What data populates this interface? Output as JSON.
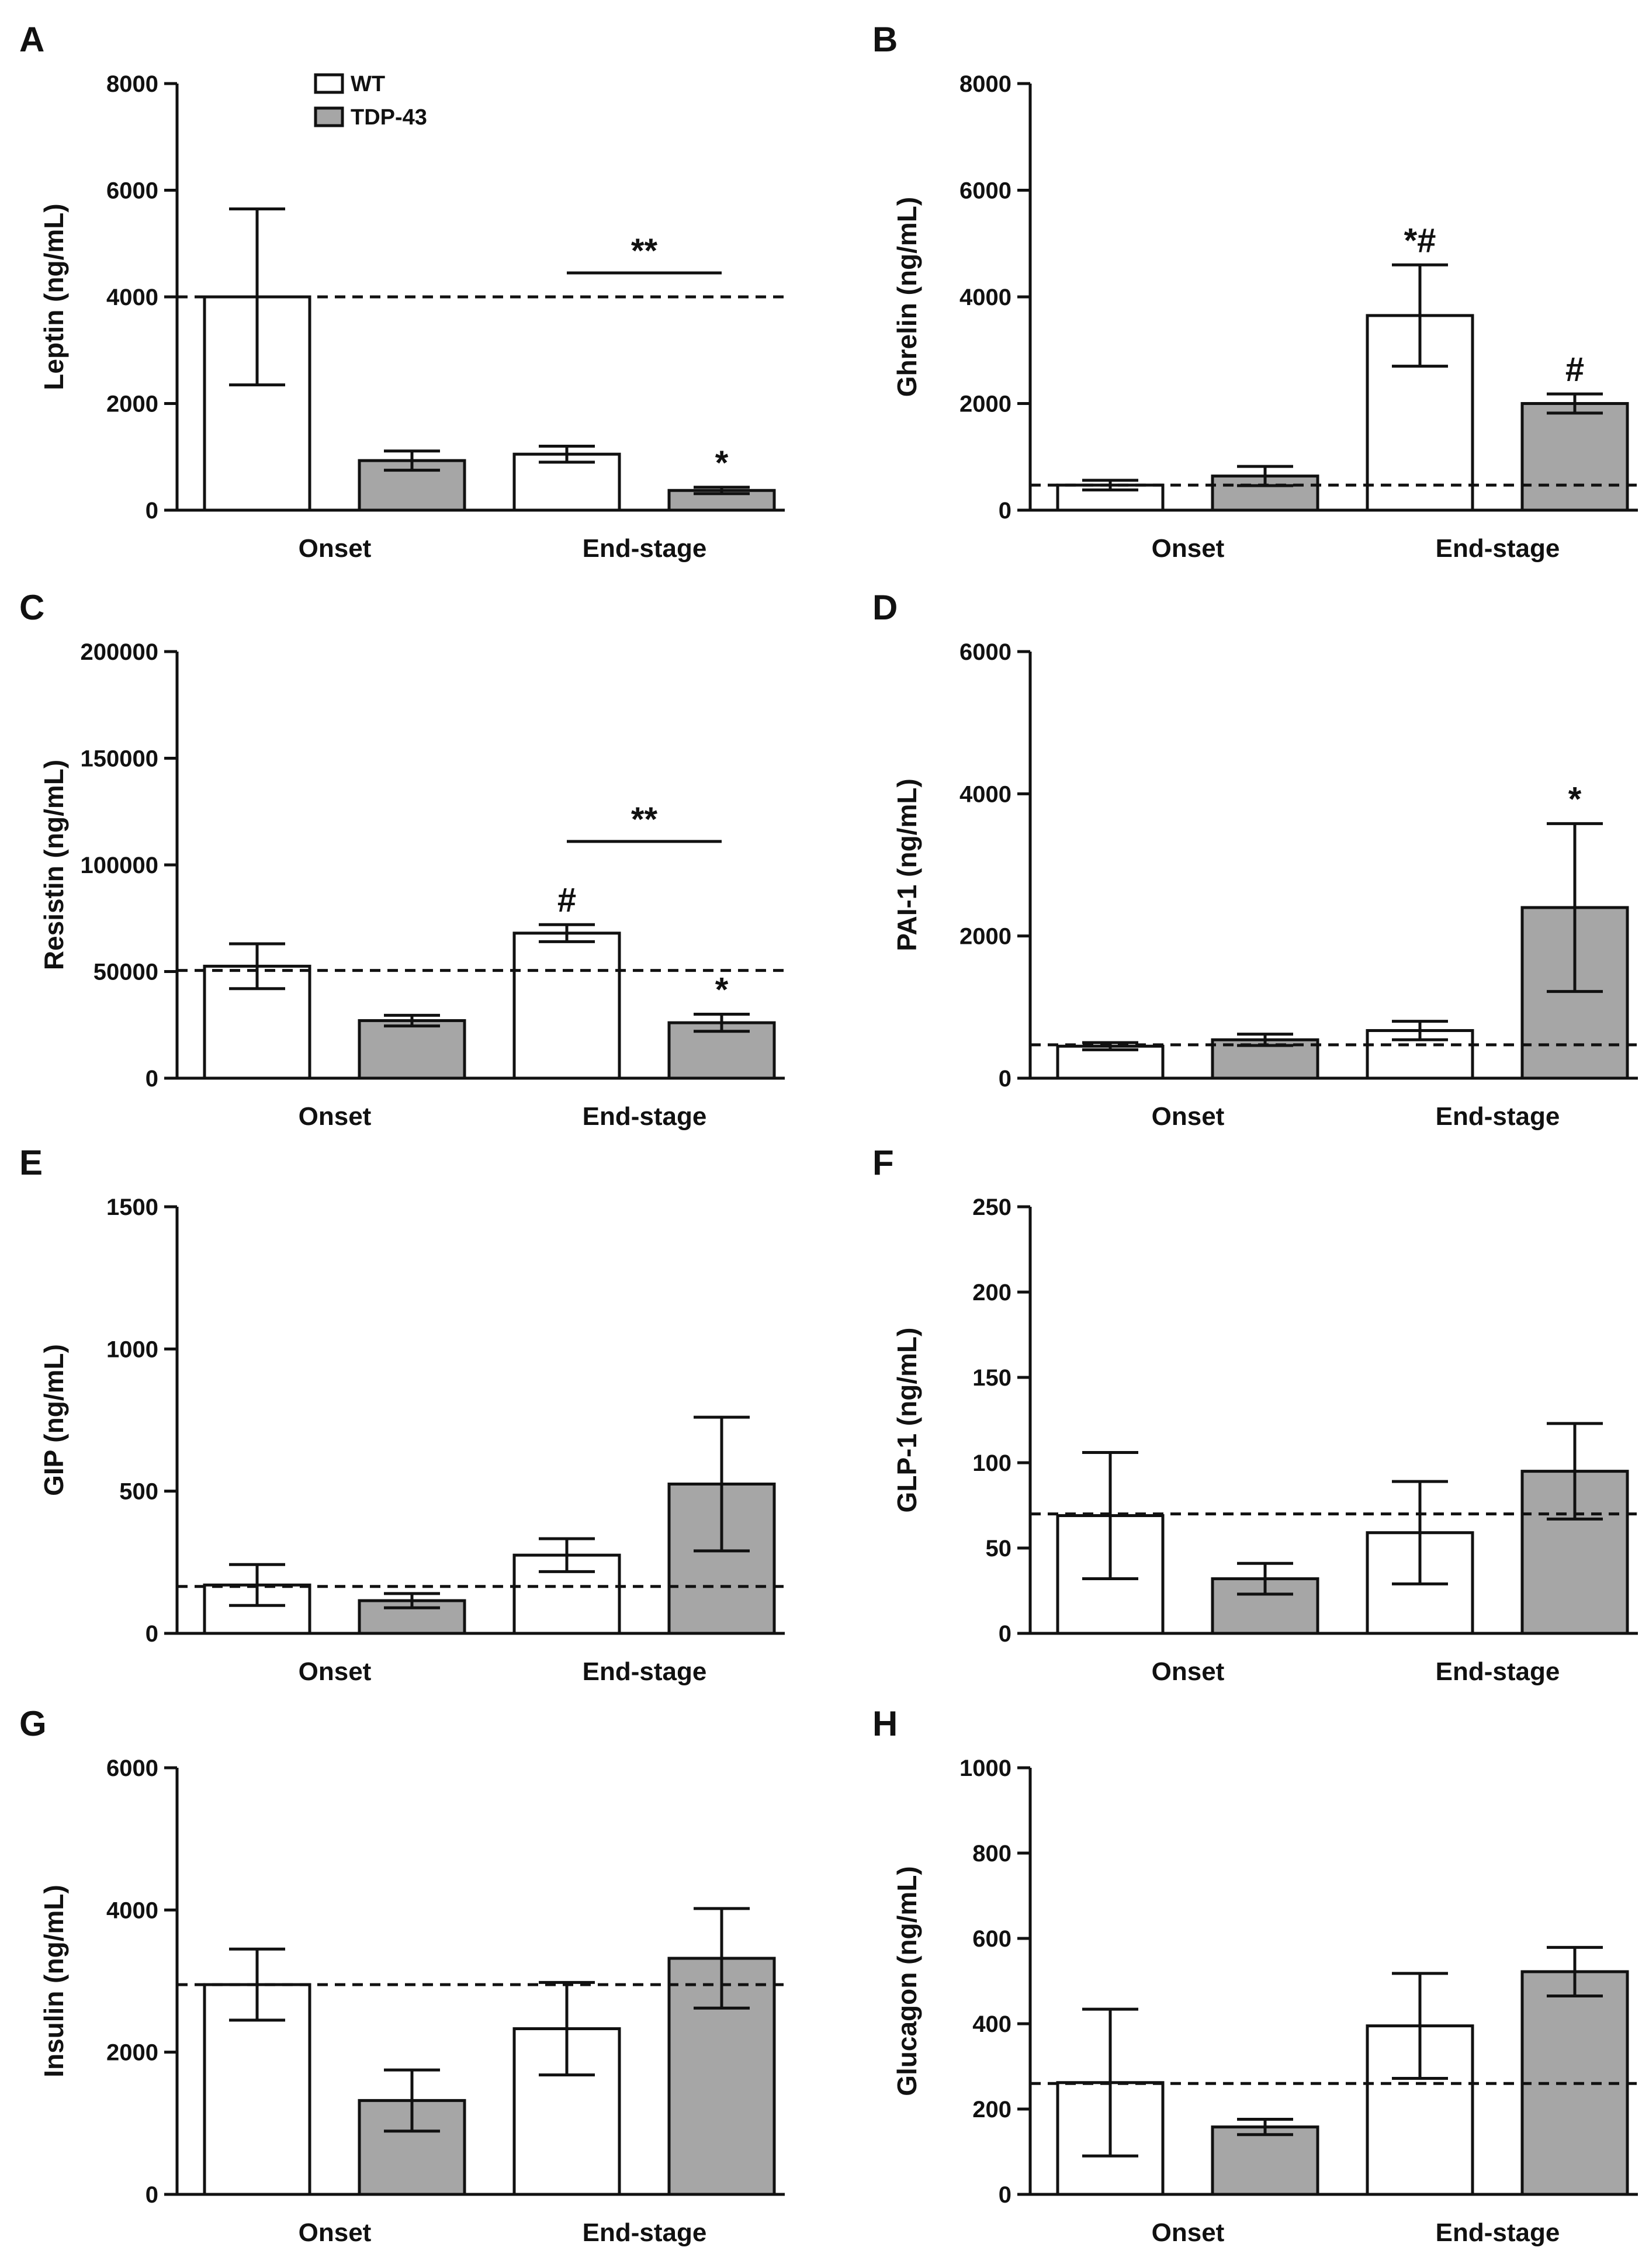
{
  "colors": {
    "wt": "#ffffff",
    "tdp43": "#a6a6a6",
    "stroke": "#111111"
  },
  "legend": {
    "items": [
      {
        "label": "WT",
        "color": "#ffffff"
      },
      {
        "label": "TDP-43",
        "color": "#a6a6a6"
      }
    ]
  },
  "chart_data": [
    {
      "letter": "A",
      "type": "bar",
      "ylabel": "Leptin (ng/mL)",
      "ylim": [
        0,
        8000
      ],
      "yticks": [
        "0",
        "2000",
        "4000",
        "6000",
        "8000"
      ],
      "ytick_values": [
        0,
        2000,
        4000,
        6000,
        8000
      ],
      "categories": [
        "Onset",
        "End-stage"
      ],
      "reference_line": 4000,
      "series": [
        {
          "name": "WT",
          "values": [
            4000,
            1050
          ],
          "errors": [
            1650,
            150
          ]
        },
        {
          "name": "TDP-43",
          "values": [
            930,
            370
          ],
          "errors": [
            180,
            60
          ]
        }
      ],
      "significance_marks": [
        {
          "text": "*",
          "series": 1,
          "category": 1
        }
      ],
      "comparison_brackets": [
        {
          "text": "**",
          "category": 1,
          "level": 4450
        }
      ]
    },
    {
      "letter": "B",
      "type": "bar",
      "ylabel": "Ghrelin (ng/mL)",
      "ylim": [
        0,
        8000
      ],
      "yticks": [
        "0",
        "2000",
        "4000",
        "6000",
        "8000"
      ],
      "ytick_values": [
        0,
        2000,
        4000,
        6000,
        8000
      ],
      "categories": [
        "Onset",
        "End-stage"
      ],
      "reference_line": 470,
      "series": [
        {
          "name": "WT",
          "values": [
            470,
            3650
          ],
          "errors": [
            90,
            950
          ]
        },
        {
          "name": "TDP-43",
          "values": [
            640,
            2000
          ],
          "errors": [
            180,
            180
          ]
        }
      ],
      "significance_marks": [
        {
          "text": "*#",
          "series": 0,
          "category": 1
        },
        {
          "text": "#",
          "series": 1,
          "category": 1
        }
      ],
      "comparison_brackets": []
    },
    {
      "letter": "C",
      "type": "bar",
      "ylabel": "Resistin (ng/mL)",
      "ylim": [
        0,
        200000
      ],
      "yticks": [
        "0",
        "50000",
        "100000",
        "150000",
        "200000"
      ],
      "ytick_values": [
        0,
        50000,
        100000,
        150000,
        200000
      ],
      "categories": [
        "Onset",
        "End-stage"
      ],
      "reference_line": 50500,
      "series": [
        {
          "name": "WT",
          "values": [
            52500,
            68000
          ],
          "errors": [
            10500,
            4000
          ]
        },
        {
          "name": "TDP-43",
          "values": [
            27000,
            26000
          ],
          "errors": [
            2500,
            4000
          ]
        }
      ],
      "significance_marks": [
        {
          "text": "#",
          "series": 0,
          "category": 1
        },
        {
          "text": "*",
          "series": 1,
          "category": 1
        }
      ],
      "comparison_brackets": [
        {
          "text": "**",
          "category": 1,
          "level": 111000
        }
      ]
    },
    {
      "letter": "D",
      "type": "bar",
      "ylabel": "PAI-1 (ng/mL)",
      "ylim": [
        0,
        6000
      ],
      "yticks": [
        "0",
        "2000",
        "4000",
        "6000"
      ],
      "ytick_values": [
        0,
        2000,
        4000,
        6000
      ],
      "categories": [
        "Onset",
        "End-stage"
      ],
      "reference_line": 470,
      "series": [
        {
          "name": "WT",
          "values": [
            450,
            670
          ],
          "errors": [
            50,
            130
          ]
        },
        {
          "name": "TDP-43",
          "values": [
            540,
            2400
          ],
          "errors": [
            80,
            1180
          ]
        }
      ],
      "significance_marks": [
        {
          "text": "*",
          "series": 1,
          "category": 1
        }
      ],
      "comparison_brackets": []
    },
    {
      "letter": "E",
      "type": "bar",
      "ylabel": "GIP (ng/mL)",
      "ylim": [
        0,
        1500
      ],
      "yticks": [
        "0",
        "500",
        "1000",
        "1500"
      ],
      "ytick_values": [
        0,
        500,
        1000,
        1500
      ],
      "categories": [
        "Onset",
        "End-stage"
      ],
      "reference_line": 165,
      "series": [
        {
          "name": "WT",
          "values": [
            170,
            275
          ],
          "errors": [
            72,
            58
          ]
        },
        {
          "name": "TDP-43",
          "values": [
            115,
            525
          ],
          "errors": [
            25,
            235
          ]
        }
      ],
      "significance_marks": [],
      "comparison_brackets": []
    },
    {
      "letter": "F",
      "type": "bar",
      "ylabel": "GLP-1 (ng/mL)",
      "ylim": [
        0,
        250
      ],
      "yticks": [
        "0",
        "50",
        "100",
        "150",
        "200",
        "250"
      ],
      "ytick_values": [
        0,
        50,
        100,
        150,
        200,
        250
      ],
      "categories": [
        "Onset",
        "End-stage"
      ],
      "reference_line": 70,
      "series": [
        {
          "name": "WT",
          "values": [
            69,
            59
          ],
          "errors": [
            37,
            30
          ]
        },
        {
          "name": "TDP-43",
          "values": [
            32,
            95
          ],
          "errors": [
            9,
            28
          ]
        }
      ],
      "significance_marks": [],
      "comparison_brackets": []
    },
    {
      "letter": "G",
      "type": "bar",
      "ylabel": "Insulin (ng/mL)",
      "ylim": [
        0,
        6000
      ],
      "yticks": [
        "0",
        "2000",
        "4000",
        "6000"
      ],
      "ytick_values": [
        0,
        2000,
        4000,
        6000
      ],
      "categories": [
        "Onset",
        "End-stage"
      ],
      "reference_line": 2950,
      "series": [
        {
          "name": "WT",
          "values": [
            2950,
            2330
          ],
          "errors": [
            500,
            650
          ]
        },
        {
          "name": "TDP-43",
          "values": [
            1320,
            3320
          ],
          "errors": [
            430,
            700
          ]
        }
      ],
      "significance_marks": [],
      "comparison_brackets": []
    },
    {
      "letter": "H",
      "type": "bar",
      "ylabel": "Glucagon (ng/mL)",
      "ylim": [
        0,
        1000
      ],
      "yticks": [
        "0",
        "200",
        "400",
        "600",
        "800",
        "1000"
      ],
      "ytick_values": [
        0,
        200,
        400,
        600,
        800,
        1000
      ],
      "categories": [
        "Onset",
        "End-stage"
      ],
      "reference_line": 260,
      "series": [
        {
          "name": "WT",
          "values": [
            262,
            395
          ],
          "errors": [
            172,
            123
          ]
        },
        {
          "name": "TDP-43",
          "values": [
            158,
            522
          ],
          "errors": [
            18,
            57
          ]
        }
      ],
      "significance_marks": [],
      "comparison_brackets": []
    }
  ]
}
